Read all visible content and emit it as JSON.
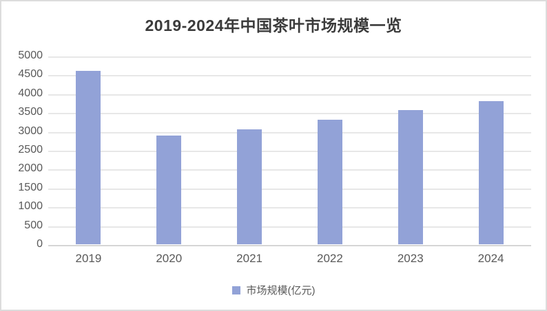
{
  "title": "2019-2024年中国茶叶市场规模一览",
  "legend": {
    "label": "市场规模(亿元)"
  },
  "colors": {
    "bar": "#92a2d7",
    "title_text": "#3b3b3b",
    "axis_text": "#595959",
    "gridline": "#e7e7e7",
    "axis_line": "#d5d5d5",
    "frame_border": "#dcdcdc"
  },
  "chart_data": {
    "type": "bar",
    "title": "2019-2024年中国茶叶市场规模一览",
    "categories": [
      "2019",
      "2020",
      "2021",
      "2022",
      "2023",
      "2024"
    ],
    "series": [
      {
        "name": "市场规模(亿元)",
        "values": [
          4600,
          2880,
          3050,
          3310,
          3560,
          3800
        ]
      }
    ],
    "xlabel": "",
    "ylabel": "",
    "ylim": [
      0,
      5000
    ],
    "yticks": [
      0,
      500,
      1000,
      1500,
      2000,
      2500,
      3000,
      3500,
      4000,
      4500,
      5000
    ],
    "grid": true,
    "legend_position": "bottom"
  }
}
